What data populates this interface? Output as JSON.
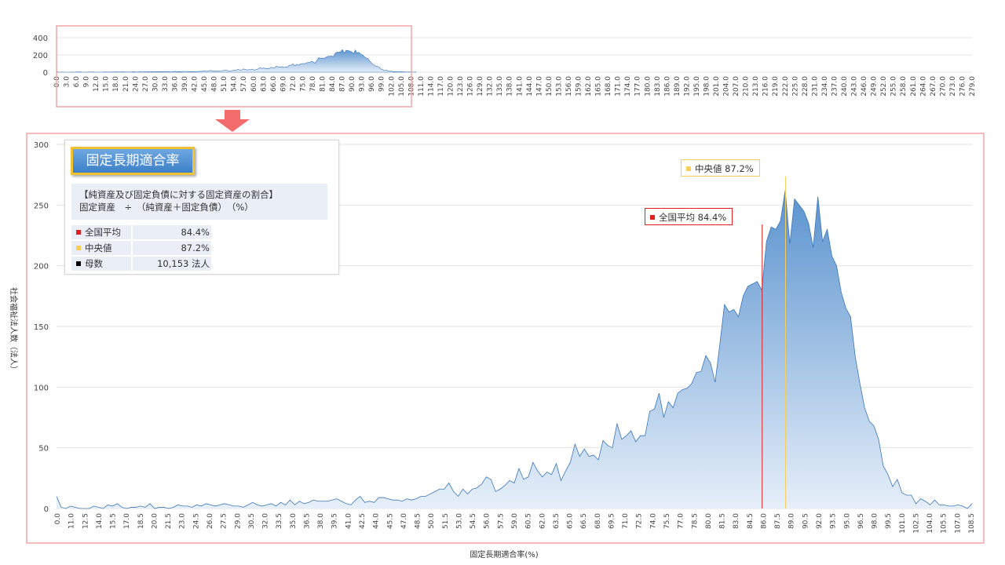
{
  "colors": {
    "area_top": "#5b93cf",
    "area_bottom": "#e6eff9",
    "line": "#3a76b9",
    "frame": "#f4a6a6",
    "arrow": "#f36b6b",
    "mean": "#e02020",
    "median": "#f7cf5a",
    "count": "#000000"
  },
  "icons": {
    "arrow": "down-arrow-icon"
  },
  "overview": {
    "y_ticks": [
      "400",
      "200",
      "0"
    ],
    "x_ticks": [
      "0.0",
      "3.0",
      "6.0",
      "9.0",
      "12.0",
      "15.0",
      "18.0",
      "21.0",
      "24.0",
      "27.0",
      "30.0",
      "33.0",
      "36.0",
      "39.0",
      "42.0",
      "45.0",
      "48.0",
      "51.0",
      "54.0",
      "57.0",
      "60.0",
      "63.0",
      "66.0",
      "69.0",
      "72.0",
      "75.0",
      "78.0",
      "81.0",
      "84.0",
      "87.0",
      "90.0",
      "93.0",
      "96.0",
      "99.0",
      "102.0",
      "105.0",
      "108.0",
      "111.0",
      "114.0",
      "117.0",
      "120.0",
      "123.0",
      "126.0",
      "129.0",
      "132.0",
      "135.0",
      "138.0",
      "141.0",
      "144.0",
      "147.0",
      "150.0",
      "153.0",
      "156.0",
      "159.0",
      "162.0",
      "165.0",
      "168.0",
      "171.0",
      "174.0",
      "177.0",
      "180.0",
      "183.0",
      "186.0",
      "189.0",
      "192.0",
      "195.0",
      "198.0",
      "201.0",
      "204.0",
      "207.0",
      "210.0",
      "213.0",
      "216.0",
      "219.0",
      "222.0",
      "225.0",
      "228.0",
      "231.0",
      "234.0",
      "237.0",
      "240.0",
      "243.0",
      "246.0",
      "249.0",
      "252.0",
      "255.0",
      "258.0",
      "261.0",
      "264.0",
      "267.0",
      "270.0",
      "273.0",
      "276.0",
      "279.0"
    ]
  },
  "legend": {
    "title": "固定長期適合率",
    "desc_line1": "【純資産及び固定負債に対する固定資産の割合】",
    "desc_line2": "固定資産　÷　（純資産＋固定負債）　（%）",
    "rows": [
      {
        "label": "全国平均",
        "value": "84.4%"
      },
      {
        "label": "中央値",
        "value": "87.2%"
      },
      {
        "label": "母数",
        "value": "10,153  法人"
      }
    ]
  },
  "callouts": {
    "mean": "全国平均  84.4%",
    "median": "中央値  87.2%"
  },
  "chart_data": {
    "type": "area",
    "xlabel": "固定長期適合率(%)",
    "ylabel": "社会福祉法人数（法人）",
    "ylim": [
      0,
      300
    ],
    "y_ticks": [
      0,
      50,
      100,
      150,
      200,
      250,
      300
    ],
    "xlim": [
      0.0,
      109.5
    ],
    "x_ticks": [
      "0.0",
      "11.0",
      "12.5",
      "14.0",
      "15.5",
      "17.0",
      "18.5",
      "20.0",
      "21.5",
      "23.0",
      "24.5",
      "26.0",
      "27.5",
      "29.0",
      "30.5",
      "32.0",
      "33.5",
      "35.0",
      "36.5",
      "38.0",
      "39.5",
      "41.0",
      "42.5",
      "44.0",
      "45.5",
      "47.0",
      "48.5",
      "50.0",
      "51.5",
      "53.0",
      "54.5",
      "56.0",
      "57.5",
      "59.0",
      "60.5",
      "62.0",
      "63.5",
      "65.0",
      "66.5",
      "68.0",
      "69.5",
      "71.0",
      "72.5",
      "74.0",
      "75.5",
      "77.0",
      "78.5",
      "80.0",
      "81.5",
      "83.0",
      "84.5",
      "86.0",
      "87.5",
      "89.0",
      "90.5",
      "92.0",
      "93.5",
      "95.0",
      "96.5",
      "98.0",
      "99.5",
      "101.0",
      "102.5",
      "104.0",
      "105.5",
      "107.0",
      "108.5"
    ],
    "mean": 84.4,
    "median": 87.2,
    "count": 10153,
    "grid": true,
    "series": [
      {
        "values": [
          10,
          1,
          0,
          2,
          1,
          0,
          0,
          0,
          2,
          1,
          0,
          3,
          2,
          4,
          1,
          0,
          1,
          1,
          2,
          1,
          4,
          0,
          1,
          1,
          0,
          1,
          3,
          2,
          2,
          1,
          3,
          2,
          4,
          3,
          2,
          3,
          4,
          3,
          2,
          2,
          1,
          3,
          5,
          3,
          2,
          3,
          4,
          2,
          5,
          3,
          7,
          3,
          6,
          4,
          5,
          7,
          6,
          6,
          6,
          7,
          8,
          6,
          4,
          3,
          7,
          10,
          5,
          6,
          5,
          9,
          9,
          8,
          7,
          7,
          6,
          8,
          7,
          8,
          10,
          10,
          12,
          14,
          16,
          16,
          21,
          14,
          10,
          16,
          12,
          16,
          17,
          20,
          26,
          24,
          14,
          16,
          19,
          23,
          21,
          33,
          24,
          26,
          38,
          31,
          26,
          30,
          28,
          37,
          23,
          31,
          38,
          53,
          43,
          49,
          43,
          44,
          40,
          56,
          52,
          50,
          70,
          57,
          60,
          64,
          55,
          60,
          60,
          80,
          82,
          95,
          75,
          88,
          83,
          95,
          98,
          99,
          103,
          112,
          113,
          126,
          120,
          104,
          135,
          168,
          162,
          164,
          158,
          175,
          183,
          185,
          187,
          180,
          220,
          232,
          230,
          237,
          262,
          218,
          255,
          250,
          245,
          235,
          215,
          257,
          220,
          230,
          208,
          200,
          178,
          165,
          158,
          125,
          103,
          83,
          72,
          68,
          57,
          35,
          28,
          18,
          24,
          13,
          11,
          11,
          4,
          8,
          6,
          3,
          7,
          3,
          3,
          2,
          2,
          3,
          2,
          0,
          4
        ]
      }
    ]
  }
}
